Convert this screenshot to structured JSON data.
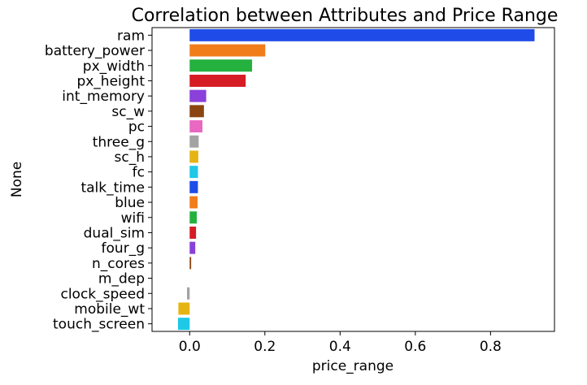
{
  "chart_data": {
    "type": "bar",
    "orientation": "horizontal",
    "title": "Correlation between Attributes and Price Range",
    "xlabel": "price_range",
    "ylabel": "None",
    "xlim": [
      -0.1,
      0.97
    ],
    "xticks": [
      0.0,
      0.2,
      0.4,
      0.6,
      0.8
    ],
    "xtick_labels": [
      "0.0",
      "0.2",
      "0.4",
      "0.6",
      "0.8"
    ],
    "grid": false,
    "legend": "none",
    "categories": [
      "ram",
      "battery_power",
      "px_width",
      "px_height",
      "int_memory",
      "sc_w",
      "pc",
      "three_g",
      "sc_h",
      "fc",
      "talk_time",
      "blue",
      "wifi",
      "dual_sim",
      "four_g",
      "n_cores",
      "m_dep",
      "clock_speed",
      "mobile_wt",
      "touch_screen"
    ],
    "values": [
      0.917,
      0.201,
      0.166,
      0.149,
      0.044,
      0.038,
      0.034,
      0.024,
      0.023,
      0.022,
      0.022,
      0.021,
      0.019,
      0.017,
      0.015,
      0.004,
      0.0,
      -0.007,
      -0.03,
      -0.031
    ],
    "colors": [
      "#1f4be8",
      "#f07c1a",
      "#25b13e",
      "#d61c24",
      "#8b40d9",
      "#8b4511",
      "#e868c2",
      "#a3a3a3",
      "#e6b412",
      "#1ec8e6",
      "#1f4be8",
      "#f07c1a",
      "#25b13e",
      "#d61c24",
      "#8b40d9",
      "#8b4511",
      "#e868c2",
      "#a3a3a3",
      "#e6b412",
      "#1ec8e6"
    ]
  }
}
